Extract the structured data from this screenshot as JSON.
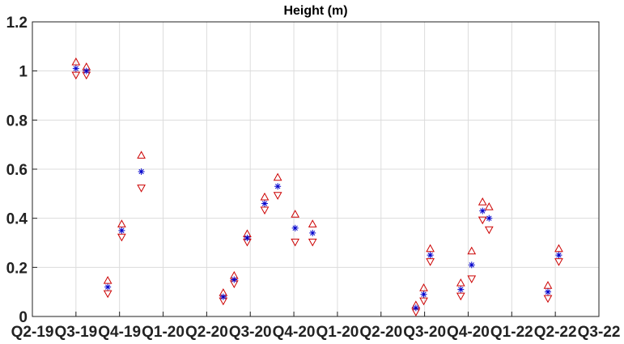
{
  "chart_data": {
    "type": "scatter",
    "title": "Height (m)",
    "xlabel": "",
    "ylabel": "",
    "x_tick_labels": [
      "Q2-19",
      "Q3-19",
      "Q4-19",
      "Q1-20",
      "Q2-20",
      "Q3-20",
      "Q4-20",
      "Q1-20",
      "Q2-20",
      "Q3-20",
      "Q4-20",
      "Q1-22",
      "Q2-22",
      "Q3-22"
    ],
    "x_range": [
      0,
      13
    ],
    "y_ticks": [
      "0",
      "0.2",
      "0.4",
      "0.6",
      "0.8",
      "1",
      "1.2"
    ],
    "ylim": [
      0,
      1.2
    ],
    "grid": true,
    "colors": {
      "marker": "#0000cc",
      "bounds": "#cc0000"
    },
    "points": [
      {
        "x": 1.0,
        "y": 1.01,
        "upper": 1.03,
        "lower": 0.99
      },
      {
        "x": 1.24,
        "y": 1.0,
        "upper": 1.01,
        "lower": 0.99
      },
      {
        "x": 1.73,
        "y": 0.12,
        "upper": 0.14,
        "lower": 0.1
      },
      {
        "x": 2.05,
        "y": 0.35,
        "upper": 0.37,
        "lower": 0.33
      },
      {
        "x": 2.5,
        "y": 0.59,
        "upper": 0.65,
        "lower": 0.53
      },
      {
        "x": 4.38,
        "y": 0.08,
        "upper": 0.09,
        "lower": 0.07
      },
      {
        "x": 4.63,
        "y": 0.15,
        "upper": 0.16,
        "lower": 0.14
      },
      {
        "x": 4.93,
        "y": 0.32,
        "upper": 0.33,
        "lower": 0.31
      },
      {
        "x": 5.33,
        "y": 0.46,
        "upper": 0.48,
        "lower": 0.44
      },
      {
        "x": 5.63,
        "y": 0.53,
        "upper": 0.56,
        "lower": 0.5
      },
      {
        "x": 6.03,
        "y": 0.36,
        "upper": 0.41,
        "lower": 0.31
      },
      {
        "x": 6.43,
        "y": 0.34,
        "upper": 0.37,
        "lower": 0.31
      },
      {
        "x": 8.8,
        "y": 0.035,
        "upper": 0.04,
        "lower": 0.025
      },
      {
        "x": 8.98,
        "y": 0.09,
        "upper": 0.11,
        "lower": 0.07
      },
      {
        "x": 9.13,
        "y": 0.25,
        "upper": 0.27,
        "lower": 0.23
      },
      {
        "x": 9.83,
        "y": 0.11,
        "upper": 0.13,
        "lower": 0.09
      },
      {
        "x": 10.08,
        "y": 0.21,
        "upper": 0.26,
        "lower": 0.16
      },
      {
        "x": 10.33,
        "y": 0.43,
        "upper": 0.46,
        "lower": 0.4
      },
      {
        "x": 10.48,
        "y": 0.4,
        "upper": 0.44,
        "lower": 0.36
      },
      {
        "x": 11.83,
        "y": 0.1,
        "upper": 0.12,
        "lower": 0.08
      },
      {
        "x": 12.08,
        "y": 0.25,
        "upper": 0.27,
        "lower": 0.23
      }
    ]
  }
}
